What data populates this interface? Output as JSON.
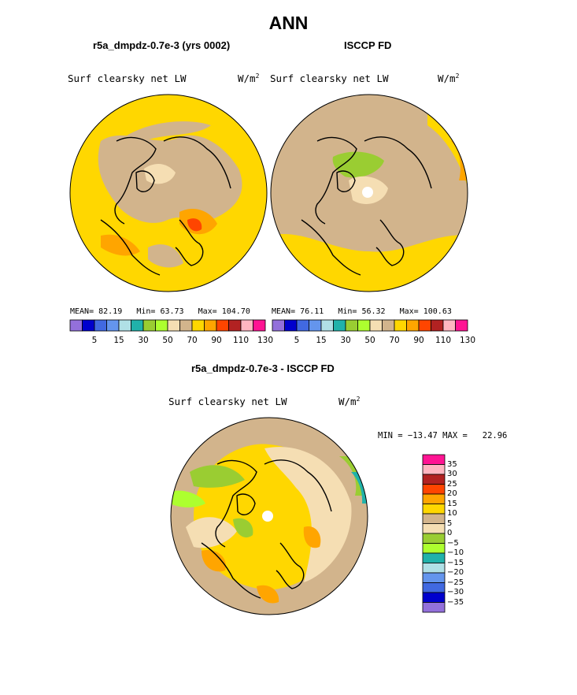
{
  "title": "ANN",
  "panels": [
    {
      "subtitle": "r5a_dmpdz-0.7e-3 (yrs 0002)",
      "label": "Surf clearsky net LW",
      "unit_base": "W/m",
      "unit_sup": "2",
      "stats": {
        "mean_label": "MEAN=",
        "mean": "82.19",
        "min_label": "Min=",
        "min": "63.73",
        "max_label": "Max=",
        "max": "104.70"
      }
    },
    {
      "subtitle": "ISCCP FD",
      "label": "Surf clearsky net LW",
      "unit_base": "W/m",
      "unit_sup": "2",
      "stats": {
        "mean_label": "MEAN=",
        "mean": "76.11",
        "min_label": "Min=",
        "min": "56.32",
        "max_label": "Max=",
        "max": "100.63"
      }
    }
  ],
  "top_colorbar": {
    "colors": [
      "#9370db",
      "#0000cd",
      "#4169e1",
      "#6495ed",
      "#b0e0e6",
      "#20b2aa",
      "#9acd32",
      "#adff2f",
      "#f5deb3",
      "#d2b48c",
      "#ffd700",
      "#ffa500",
      "#ff4500",
      "#b22222",
      "#ffb6c1",
      "#ff1493"
    ],
    "ticks": [
      "5",
      "15",
      "30",
      "50",
      "70",
      "90",
      "110",
      "130"
    ]
  },
  "diff": {
    "subtitle": "r5a_dmpdz-0.7e-3 - ISCCP FD",
    "label": "Surf clearsky net LW",
    "unit_base": "W/m",
    "unit_sup": "2",
    "minmax": "MIN = −13.47 MAX =   22.96",
    "colorbar": {
      "colors": [
        "#ff1493",
        "#ffb6c1",
        "#b22222",
        "#ff4500",
        "#ffa500",
        "#ffd700",
        "#d2b48c",
        "#f5deb3",
        "#9acd32",
        "#adff2f",
        "#20b2aa",
        "#b0e0e6",
        "#6495ed",
        "#4169e1",
        "#0000cd",
        "#9370db"
      ],
      "ticks": [
        "35",
        "30",
        "25",
        "20",
        "15",
        "10",
        "5",
        "0",
        "−5",
        "−10",
        "−15",
        "−20",
        "−25",
        "−30",
        "−35"
      ]
    }
  }
}
